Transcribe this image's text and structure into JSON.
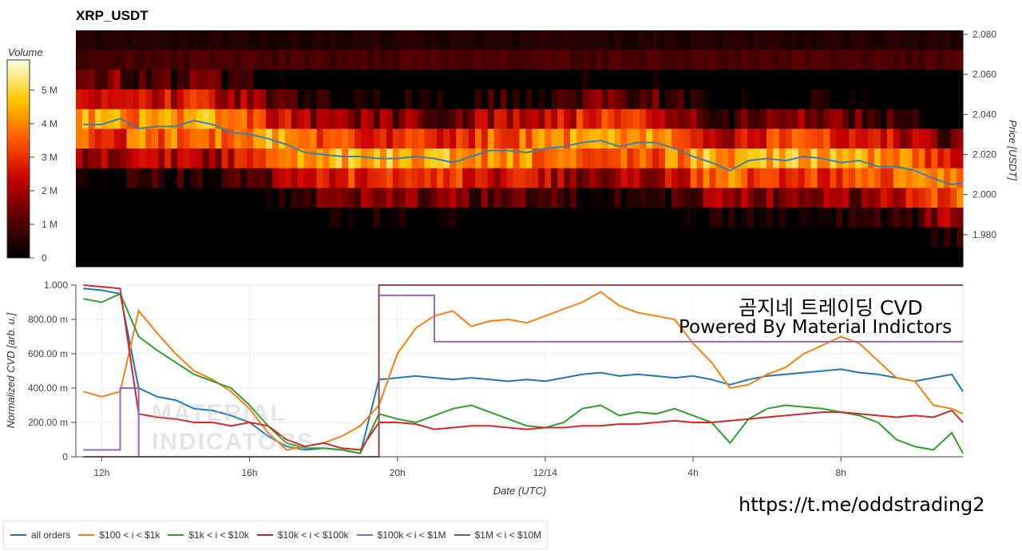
{
  "title": "XRP_USDT",
  "colorbar": {
    "label": "Volume",
    "ticks": [
      "0",
      "1 M",
      "2 M",
      "3 M",
      "4 M",
      "5 M"
    ]
  },
  "price_axis": {
    "label": "Price [USDT]",
    "ticks": [
      "1.980",
      "2.000",
      "2.020",
      "2.040",
      "2.060",
      "2.080"
    ]
  },
  "cvd_axis": {
    "label": "Normalized CVD [arb. u.]",
    "ticks": [
      "0",
      "200.00 m",
      "400.00 m",
      "600.00 m",
      "800.00 m",
      "1.000"
    ]
  },
  "x_axis": {
    "label": "Date (UTC)",
    "ticks": [
      "12h",
      "16h",
      "20h",
      "12/14",
      "4h",
      "8h"
    ]
  },
  "overlay": {
    "line1": "곰지네 트레이딩 CVD",
    "line2": "Powered By Material Indictors",
    "url": "https://t.me/oddstrading2"
  },
  "watermark": {
    "line1": "MATERIAL",
    "line2": "INDICATORS"
  },
  "legend": [
    {
      "label": "all orders",
      "color": "#1f77b4"
    },
    {
      "label": "$100 < i < $1k",
      "color": "#ff7f0e"
    },
    {
      "label": "$1k < i < $10k",
      "color": "#2ca02c"
    },
    {
      "label": "$10k < i < $100k",
      "color": "#d62728"
    },
    {
      "label": "$100k < i < $1M",
      "color": "#9467bd"
    },
    {
      "label": "$1M < i < $10M",
      "color": "#8c564b"
    }
  ],
  "chart_data": [
    {
      "type": "heatmap",
      "title": "XRP_USDT",
      "ylabel": "Price [USDT]",
      "ylim": [
        1.964,
        2.082
      ],
      "price_series": {
        "name": "price",
        "color": "#3a7fb0",
        "x_hours": [
          11.5,
          12.0,
          12.5,
          13.0,
          13.5,
          14.0,
          14.5,
          15.0,
          15.5,
          16.0,
          16.5,
          17.0,
          17.5,
          18.0,
          18.5,
          19.0,
          19.5,
          20.0,
          20.5,
          21.0,
          21.5,
          22.0,
          22.5,
          23.0,
          23.5,
          24.0,
          24.5,
          25.0,
          25.5,
          26.0,
          26.5,
          27.0,
          27.5,
          28.0,
          28.5,
          29.0,
          29.5,
          30.0,
          30.5,
          31.0,
          31.5,
          32.0,
          32.5,
          33.0,
          33.5,
          34.0,
          34.5,
          35.0,
          35.3
        ],
        "values": [
          2.035,
          2.035,
          2.038,
          2.033,
          2.034,
          2.034,
          2.037,
          2.035,
          2.031,
          2.03,
          2.028,
          2.025,
          2.021,
          2.02,
          2.019,
          2.019,
          2.018,
          2.018,
          2.019,
          2.018,
          2.016,
          2.019,
          2.022,
          2.022,
          2.021,
          2.023,
          2.024,
          2.026,
          2.027,
          2.024,
          2.026,
          2.026,
          2.023,
          2.019,
          2.016,
          2.012,
          2.017,
          2.018,
          2.017,
          2.019,
          2.018,
          2.016,
          2.017,
          2.014,
          2.014,
          2.012,
          2.008,
          2.005,
          2.006
        ]
      }
    },
    {
      "type": "line",
      "xlabel": "Date (UTC)",
      "ylabel": "Normalized CVD [arb. u.]",
      "ylim": [
        0,
        1.0
      ],
      "x_hours": [
        11.5,
        12.0,
        12.5,
        13.0,
        13.5,
        14.0,
        14.5,
        15.0,
        15.5,
        16.0,
        16.5,
        17.0,
        17.5,
        18.0,
        18.5,
        19.0,
        19.5,
        20.0,
        20.5,
        21.0,
        21.5,
        22.0,
        22.5,
        23.0,
        23.5,
        24.0,
        24.5,
        25.0,
        25.5,
        26.0,
        26.5,
        27.0,
        27.5,
        28.0,
        28.5,
        29.0,
        29.5,
        30.0,
        30.5,
        31.0,
        31.5,
        32.0,
        32.5,
        33.0,
        33.5,
        34.0,
        34.5,
        35.0,
        35.3
      ],
      "series": [
        {
          "name": "all orders",
          "color": "#1f77b4",
          "values": [
            0.98,
            0.97,
            0.95,
            0.4,
            0.35,
            0.33,
            0.28,
            0.27,
            0.24,
            0.2,
            0.12,
            0.06,
            0.04,
            0.05,
            0.04,
            0.02,
            0.45,
            0.46,
            0.47,
            0.46,
            0.45,
            0.46,
            0.45,
            0.44,
            0.45,
            0.44,
            0.46,
            0.48,
            0.49,
            0.47,
            0.48,
            0.47,
            0.46,
            0.47,
            0.45,
            0.42,
            0.45,
            0.47,
            0.48,
            0.49,
            0.5,
            0.51,
            0.49,
            0.48,
            0.46,
            0.44,
            0.46,
            0.48,
            0.38
          ]
        },
        {
          "name": "$100 < i < $1k",
          "color": "#ff7f0e",
          "values": [
            0.38,
            0.35,
            0.38,
            0.85,
            0.72,
            0.6,
            0.5,
            0.45,
            0.38,
            0.28,
            0.14,
            0.04,
            0.06,
            0.08,
            0.12,
            0.18,
            0.3,
            0.6,
            0.75,
            0.82,
            0.85,
            0.76,
            0.79,
            0.8,
            0.78,
            0.82,
            0.86,
            0.9,
            0.96,
            0.88,
            0.84,
            0.82,
            0.8,
            0.66,
            0.55,
            0.4,
            0.42,
            0.48,
            0.52,
            0.6,
            0.65,
            0.7,
            0.66,
            0.56,
            0.46,
            0.44,
            0.3,
            0.28,
            0.25
          ]
        },
        {
          "name": "$1k < i < $10k",
          "color": "#2ca02c",
          "values": [
            0.92,
            0.9,
            0.95,
            0.7,
            0.62,
            0.55,
            0.48,
            0.44,
            0.4,
            0.3,
            0.18,
            0.08,
            0.05,
            0.05,
            0.04,
            0.02,
            0.25,
            0.22,
            0.2,
            0.24,
            0.28,
            0.3,
            0.26,
            0.22,
            0.18,
            0.17,
            0.2,
            0.28,
            0.3,
            0.24,
            0.26,
            0.25,
            0.28,
            0.24,
            0.2,
            0.08,
            0.22,
            0.28,
            0.3,
            0.29,
            0.28,
            0.26,
            0.24,
            0.2,
            0.1,
            0.06,
            0.04,
            0.14,
            0.02
          ]
        },
        {
          "name": "$10k < i < $100k",
          "color": "#d62728",
          "values": [
            1.0,
            0.99,
            0.98,
            0.25,
            0.23,
            0.22,
            0.2,
            0.2,
            0.18,
            0.2,
            0.18,
            0.1,
            0.06,
            0.08,
            0.05,
            0.04,
            0.2,
            0.2,
            0.19,
            0.16,
            0.17,
            0.18,
            0.18,
            0.17,
            0.16,
            0.17,
            0.17,
            0.18,
            0.18,
            0.19,
            0.19,
            0.2,
            0.21,
            0.2,
            0.2,
            0.21,
            0.22,
            0.23,
            0.24,
            0.25,
            0.26,
            0.26,
            0.25,
            0.24,
            0.23,
            0.24,
            0.23,
            0.27,
            0.2
          ]
        },
        {
          "name": "$100k < i < $1M",
          "color": "#9467bd",
          "values": [
            0.04,
            0.04,
            0.4,
            0.0,
            0.0,
            0.0,
            0.0,
            0.0,
            0.0,
            0.0,
            0.0,
            0.0,
            0.0,
            0.0,
            0.0,
            0.0,
            0.94,
            0.94,
            0.94,
            0.67,
            0.67,
            0.67,
            0.67,
            0.67,
            0.67,
            0.67,
            0.67,
            0.67,
            0.67,
            0.67,
            0.67,
            0.67,
            0.67,
            0.67,
            0.67,
            0.67,
            0.67,
            0.67,
            0.67,
            0.67,
            0.67,
            0.67,
            0.67,
            0.67,
            0.67,
            0.67,
            0.67,
            0.67,
            0.67
          ]
        },
        {
          "name": "$1M < i < $10M",
          "color": "#8c564b",
          "values": [
            0.0,
            0.0,
            0.0,
            0.0,
            0.0,
            0.0,
            0.0,
            0.0,
            0.0,
            0.0,
            0.0,
            0.0,
            0.0,
            0.0,
            0.0,
            0.0,
            1.0,
            1.0,
            1.0,
            1.0,
            1.0,
            1.0,
            1.0,
            1.0,
            1.0,
            1.0,
            1.0,
            1.0,
            1.0,
            1.0,
            1.0,
            1.0,
            1.0,
            1.0,
            1.0,
            1.0,
            1.0,
            1.0,
            1.0,
            1.0,
            1.0,
            1.0,
            1.0,
            1.0,
            1.0,
            1.0,
            1.0,
            1.0,
            1.0
          ]
        }
      ]
    }
  ]
}
